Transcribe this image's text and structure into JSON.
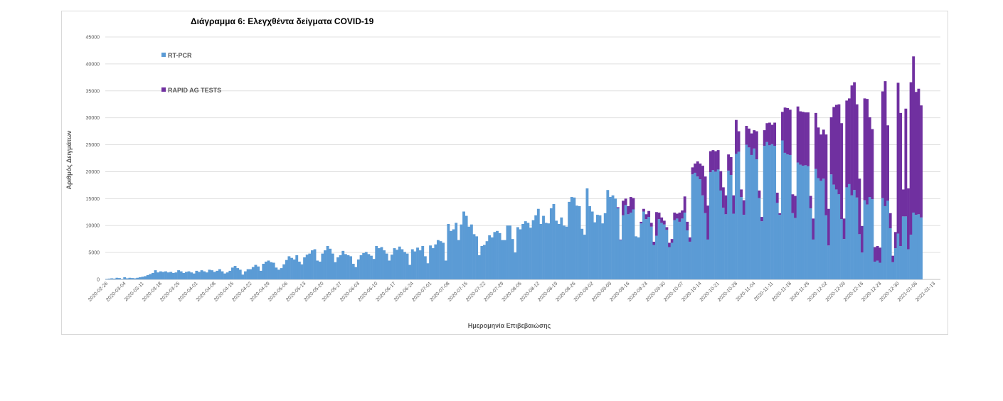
{
  "chart_data": {
    "type": "bar",
    "stacked": true,
    "title": "Διάγραμμα 6: Ελεγχθέντα δείγματα COVID-19",
    "xlabel": "Ημερομηνία Επιβεβαιώσης",
    "ylabel": "Αριθμός Δειγμάτων",
    "ylim": [
      0,
      45000
    ],
    "yticks": [
      0,
      5000,
      10000,
      15000,
      20000,
      25000,
      30000,
      35000,
      40000,
      45000
    ],
    "grid": true,
    "legend": "top-left",
    "x_start": "2020-02-26",
    "x_end": "2021-01-15",
    "xtick_labels": [
      "2020-02-26",
      "2020-03-04",
      "2020-03-11",
      "2020-03-18",
      "2020-03-25",
      "2020-04-01",
      "2020-04-08",
      "2020-04-15",
      "2020-04-22",
      "2020-04-29",
      "2020-05-06",
      "2020-05-13",
      "2020-05-20",
      "2020-05-27",
      "2020-06-03",
      "2020-06-10",
      "2020-06-17",
      "2020-06-24",
      "2020-07-01",
      "2020-07-08",
      "2020-07-15",
      "2020-07-22",
      "2020-07-29",
      "2020-08-05",
      "2020-08-12",
      "2020-08-19",
      "2020-08-26",
      "2020-09-02",
      "2020-09-09",
      "2020-09-16",
      "2020-09-23",
      "2020-09-30",
      "2020-10-07",
      "2020-10-14",
      "2020-10-21",
      "2020-10-28",
      "2020-11-04",
      "2020-11-11",
      "2020-11-18",
      "2020-11-25",
      "2020-12-02",
      "2020-12-09",
      "2020-12-16",
      "2020-12-23",
      "2020-12-30",
      "2021-01-06",
      "2021-01-13"
    ],
    "series": [
      {
        "name": "RT-PCR",
        "color": "#5b9bd5",
        "weekly_approx": [
          {
            "from": "2020-02-26",
            "values": [
              100,
              150,
              200,
              150,
              300,
              250,
              100
            ]
          },
          {
            "from": "2020-03-04",
            "values": [
              400,
              200,
              300,
              250,
              200,
              300,
              400
            ]
          },
          {
            "from": "2020-03-11",
            "values": [
              500,
              600,
              800,
              1000,
              1200,
              1700,
              1300
            ]
          },
          {
            "from": "2020-03-18",
            "values": [
              1500,
              1400,
              1500,
              1300,
              1400,
              1200,
              1300
            ]
          },
          {
            "from": "2020-03-25",
            "values": [
              1700,
              1500,
              1200,
              1400,
              1500,
              1300,
              1100
            ]
          },
          {
            "from": "2020-04-01",
            "values": [
              1600,
              1400,
              1700,
              1500,
              1300,
              1800,
              1700
            ]
          },
          {
            "from": "2020-04-08",
            "values": [
              1400,
              1600,
              1900,
              1500,
              1100,
              1300,
              1600
            ]
          },
          {
            "from": "2020-04-15",
            "values": [
              2200,
              2500,
              2100,
              1800,
              900,
              1500,
              1900
            ]
          },
          {
            "from": "2020-04-22",
            "values": [
              1900,
              2300,
              2700,
              2400,
              1600,
              2900,
              3300
            ]
          },
          {
            "from": "2020-04-29",
            "values": [
              3500,
              3200,
              3100,
              2200,
              1800,
              2100,
              2800
            ]
          },
          {
            "from": "2020-05-06",
            "values": [
              3600,
              4300,
              4000,
              3700,
              4500,
              3300,
              2800
            ]
          },
          {
            "from": "2020-05-13",
            "values": [
              4100,
              4600,
              4800,
              5400,
              5600,
              3500,
              3300
            ]
          },
          {
            "from": "2020-05-20",
            "values": [
              4800,
              5400,
              6200,
              5700,
              4800,
              3200,
              4100
            ]
          },
          {
            "from": "2020-05-27",
            "values": [
              4500,
              5300,
              4700,
              4500,
              4300,
              2900,
              2300
            ]
          },
          {
            "from": "2020-06-03",
            "values": [
              3700,
              4500,
              4900,
              5100,
              4700,
              4400,
              3800
            ]
          },
          {
            "from": "2020-06-10",
            "values": [
              6200,
              5800,
              6000,
              5400,
              4800,
              3500,
              4600
            ]
          },
          {
            "from": "2020-06-17",
            "values": [
              5800,
              5500,
              6100,
              5600,
              5100,
              4800,
              2700
            ]
          },
          {
            "from": "2020-06-24",
            "values": [
              5600,
              5200,
              5900,
              5400,
              6200,
              4300,
              3000
            ]
          },
          {
            "from": "2020-07-01",
            "values": [
              6300,
              5800,
              6500,
              7300,
              7100,
              6800,
              3500
            ]
          },
          {
            "from": "2020-07-08",
            "values": [
              10300,
              9000,
              9300,
              10500,
              7300,
              10200,
              12600
            ]
          },
          {
            "from": "2020-07-15",
            "values": [
              11800,
              9800,
              10200,
              8400,
              8000,
              4500,
              6200
            ]
          },
          {
            "from": "2020-07-22",
            "values": [
              6400,
              7100,
              8200,
              7800,
              8800,
              9000,
              8600
            ]
          },
          {
            "from": "2020-07-29",
            "values": [
              7300,
              7300,
              10000,
              10000,
              7500,
              5000,
              9700
            ]
          },
          {
            "from": "2020-08-05",
            "values": [
              9300,
              10300,
              10800,
              10500,
              9600,
              11000,
              11900
            ]
          },
          {
            "from": "2020-08-12",
            "values": [
              13100,
              10300,
              11800,
              10500,
              10400,
              13200,
              14000
            ]
          },
          {
            "from": "2020-08-19",
            "values": [
              10900,
              10300,
              11500,
              10000,
              9800,
              14400,
              15300
            ]
          },
          {
            "from": "2020-08-26",
            "values": [
              15200,
              13700,
              13600,
              9400,
              8300,
              16900,
              13600
            ]
          },
          {
            "from": "2020-09-02",
            "values": [
              12600,
              10600,
              12000,
              11900,
              10400,
              12300,
              16600
            ]
          },
          {
            "from": "2020-09-09",
            "values": [
              15300,
              15600,
              15000,
              13200,
              7300,
              11900,
              13800
            ]
          },
          {
            "from": "2020-09-16",
            "values": [
              12100,
              12400,
              13000,
              8000,
              7800,
              10400,
              12600
            ]
          },
          {
            "from": "2020-09-23",
            "values": [
              11200,
              11600,
              9800,
              6400,
              8100,
              11200,
              10500
            ]
          },
          {
            "from": "2020-09-30",
            "values": [
              10200,
              9200,
              6000,
              6800,
              11000,
              11300,
              10700
            ]
          },
          {
            "from": "2020-10-07",
            "values": [
              11300,
              12400,
              9100,
              7000,
              19500,
              19800,
              19100
            ]
          },
          {
            "from": "2020-10-14",
            "values": [
              18600,
              15600,
              12300,
              7400,
              19900,
              20300,
              20000
            ]
          },
          {
            "from": "2020-10-21",
            "values": [
              20400,
              16500,
              13300,
              12100,
              20200,
              19400,
              12200
            ]
          },
          {
            "from": "2020-10-28",
            "values": [
              23300,
              23700,
              15300,
              12000,
              25000,
              24500,
              23100
            ]
          },
          {
            "from": "2020-11-04",
            "values": [
              24300,
              22300,
              15100,
              10800,
              24800,
              25500,
              24900
            ]
          },
          {
            "from": "2020-11-11",
            "values": [
              25100,
              24800,
              14200,
              12000,
              25800,
              23500,
              23200
            ]
          },
          {
            "from": "2020-11-18",
            "values": [
              23100,
              12300,
              11400,
              21700,
              21300,
              21100,
              21200
            ]
          },
          {
            "from": "2020-11-25",
            "values": [
              21000,
              13200,
              7400,
              20500,
              18800,
              18300,
              18700
            ]
          },
          {
            "from": "2020-12-02",
            "values": [
              11900,
              6300,
              19500,
              17600,
              16700,
              15800,
              11200
            ]
          },
          {
            "from": "2020-12-09",
            "values": [
              7500,
              17100,
              17700,
              15600,
              16600,
              15200,
              8400
            ]
          },
          {
            "from": "2020-12-16",
            "values": [
              5000,
              14700,
              13900,
              15300,
              14900,
              3300,
              3500
            ]
          },
          {
            "from": "2020-12-23",
            "values": [
              3100,
              15100,
              13600,
              14600,
              9500,
              3200,
              5800
            ]
          },
          {
            "from": "2020-12-30",
            "values": [
              8500,
              6200,
              11700,
              11700,
              5600,
              8300,
              12400
            ]
          },
          {
            "from": "2021-01-06",
            "values": [
              12000,
              12100,
              11500
            ]
          }
        ]
      },
      {
        "name": "RAPID AG TESTS",
        "color": "#7030a0",
        "weekly_approx": [
          {
            "from": "2020-09-09",
            "values": [
              0,
              0,
              0,
              200,
              100,
              2700,
              1200
            ]
          },
          {
            "from": "2020-09-16",
            "values": [
              1500,
              2900,
              2100,
              0,
              0,
              300,
              500
            ]
          },
          {
            "from": "2020-09-23",
            "values": [
              900,
              1100,
              700,
              600,
              4400,
              1200,
              1000
            ]
          },
          {
            "from": "2020-09-30",
            "values": [
              700,
              500,
              800,
              700,
              1400,
              900,
              1700
            ]
          },
          {
            "from": "2020-10-07",
            "values": [
              1500,
              3000,
              1600,
              800,
              1300,
              1700,
              2800
            ]
          },
          {
            "from": "2020-10-14",
            "values": [
              2900,
              5500,
              6800,
              6300,
              3900,
              3700,
              3800
            ]
          },
          {
            "from": "2020-10-21",
            "values": [
              3600,
              3600,
              3800,
              3500,
              3000,
              3300,
              3400
            ]
          },
          {
            "from": "2020-10-28",
            "values": [
              6300,
              3800,
              1400,
              2700,
              3500,
              3500,
              4000
            ]
          },
          {
            "from": "2020-11-04",
            "values": [
              3400,
              5200,
              1400,
              800,
              2900,
              3500,
              4200
            ]
          },
          {
            "from": "2020-11-11",
            "values": [
              3600,
              4300,
              1900,
              300,
              5300,
              8400,
              8600
            ]
          },
          {
            "from": "2020-11-18",
            "values": [
              8400,
              3500,
              4100,
              10400,
              9900,
              10000,
              9800
            ]
          },
          {
            "from": "2020-11-25",
            "values": [
              10000,
              2300,
              3900,
              10400,
              9400,
              8600,
              9100
            ]
          },
          {
            "from": "2020-12-02",
            "values": [
              15000,
              6800,
              10600,
              14400,
              15700,
              16700,
              17800
            ]
          },
          {
            "from": "2020-12-09",
            "values": [
              3800,
              16100,
              15900,
              20400,
              20000,
              17300,
              10300
            ]
          },
          {
            "from": "2020-12-16",
            "values": [
              4900,
              18900,
              19600,
              14800,
              13000,
              2700,
              2700
            ]
          },
          {
            "from": "2020-12-23",
            "values": [
              2800,
              19800,
              23200,
              14000,
              2800,
              1200,
              3000
            ]
          },
          {
            "from": "2020-12-30",
            "values": [
              28000,
              24700,
              5000,
              20000,
              11300,
              28300,
              29000
            ]
          },
          {
            "from": "2021-01-06",
            "values": [
              22800,
              23300,
              20800
            ]
          }
        ]
      }
    ]
  },
  "page": {
    "title": "Διάγραμμα 6: Ελεγχθέντα δείγματα COVID-19",
    "legend": {
      "pcr_label": "RT-PCR",
      "rapid_label": "RAPID AG TESTS"
    },
    "axis": {
      "x_title": "Ημερομηνία Επιβεβαιώσης",
      "y_title": "Αριθμός Δειγμάτων"
    }
  }
}
